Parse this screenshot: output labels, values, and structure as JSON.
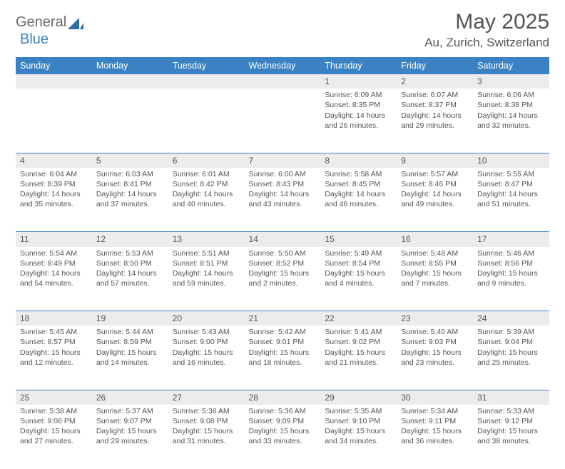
{
  "brand": {
    "part1": "General",
    "part2": "Blue"
  },
  "title": "May 2025",
  "location": "Au, Zurich, Switzerland",
  "colors": {
    "header_bg": "#3b82c4",
    "header_text": "#ffffff",
    "daynum_bg": "#ececec",
    "border": "#3b82c4",
    "text": "#555555",
    "page_bg": "#ffffff"
  },
  "day_headers": [
    "Sunday",
    "Monday",
    "Tuesday",
    "Wednesday",
    "Thursday",
    "Friday",
    "Saturday"
  ],
  "weeks": [
    {
      "nums": [
        "",
        "",
        "",
        "",
        "1",
        "2",
        "3"
      ],
      "cells": [
        null,
        null,
        null,
        null,
        {
          "sunrise": "Sunrise: 6:09 AM",
          "sunset": "Sunset: 8:35 PM",
          "day1": "Daylight: 14 hours",
          "day2": "and 26 minutes."
        },
        {
          "sunrise": "Sunrise: 6:07 AM",
          "sunset": "Sunset: 8:37 PM",
          "day1": "Daylight: 14 hours",
          "day2": "and 29 minutes."
        },
        {
          "sunrise": "Sunrise: 6:06 AM",
          "sunset": "Sunset: 8:38 PM",
          "day1": "Daylight: 14 hours",
          "day2": "and 32 minutes."
        }
      ]
    },
    {
      "nums": [
        "4",
        "5",
        "6",
        "7",
        "8",
        "9",
        "10"
      ],
      "cells": [
        {
          "sunrise": "Sunrise: 6:04 AM",
          "sunset": "Sunset: 8:39 PM",
          "day1": "Daylight: 14 hours",
          "day2": "and 35 minutes."
        },
        {
          "sunrise": "Sunrise: 6:03 AM",
          "sunset": "Sunset: 8:41 PM",
          "day1": "Daylight: 14 hours",
          "day2": "and 37 minutes."
        },
        {
          "sunrise": "Sunrise: 6:01 AM",
          "sunset": "Sunset: 8:42 PM",
          "day1": "Daylight: 14 hours",
          "day2": "and 40 minutes."
        },
        {
          "sunrise": "Sunrise: 6:00 AM",
          "sunset": "Sunset: 8:43 PM",
          "day1": "Daylight: 14 hours",
          "day2": "and 43 minutes."
        },
        {
          "sunrise": "Sunrise: 5:58 AM",
          "sunset": "Sunset: 8:45 PM",
          "day1": "Daylight: 14 hours",
          "day2": "and 46 minutes."
        },
        {
          "sunrise": "Sunrise: 5:57 AM",
          "sunset": "Sunset: 8:46 PM",
          "day1": "Daylight: 14 hours",
          "day2": "and 49 minutes."
        },
        {
          "sunrise": "Sunrise: 5:55 AM",
          "sunset": "Sunset: 8:47 PM",
          "day1": "Daylight: 14 hours",
          "day2": "and 51 minutes."
        }
      ]
    },
    {
      "nums": [
        "11",
        "12",
        "13",
        "14",
        "15",
        "16",
        "17"
      ],
      "cells": [
        {
          "sunrise": "Sunrise: 5:54 AM",
          "sunset": "Sunset: 8:49 PM",
          "day1": "Daylight: 14 hours",
          "day2": "and 54 minutes."
        },
        {
          "sunrise": "Sunrise: 5:53 AM",
          "sunset": "Sunset: 8:50 PM",
          "day1": "Daylight: 14 hours",
          "day2": "and 57 minutes."
        },
        {
          "sunrise": "Sunrise: 5:51 AM",
          "sunset": "Sunset: 8:51 PM",
          "day1": "Daylight: 14 hours",
          "day2": "and 59 minutes."
        },
        {
          "sunrise": "Sunrise: 5:50 AM",
          "sunset": "Sunset: 8:52 PM",
          "day1": "Daylight: 15 hours",
          "day2": "and 2 minutes."
        },
        {
          "sunrise": "Sunrise: 5:49 AM",
          "sunset": "Sunset: 8:54 PM",
          "day1": "Daylight: 15 hours",
          "day2": "and 4 minutes."
        },
        {
          "sunrise": "Sunrise: 5:48 AM",
          "sunset": "Sunset: 8:55 PM",
          "day1": "Daylight: 15 hours",
          "day2": "and 7 minutes."
        },
        {
          "sunrise": "Sunrise: 5:46 AM",
          "sunset": "Sunset: 8:56 PM",
          "day1": "Daylight: 15 hours",
          "day2": "and 9 minutes."
        }
      ]
    },
    {
      "nums": [
        "18",
        "19",
        "20",
        "21",
        "22",
        "23",
        "24"
      ],
      "cells": [
        {
          "sunrise": "Sunrise: 5:45 AM",
          "sunset": "Sunset: 8:57 PM",
          "day1": "Daylight: 15 hours",
          "day2": "and 12 minutes."
        },
        {
          "sunrise": "Sunrise: 5:44 AM",
          "sunset": "Sunset: 8:59 PM",
          "day1": "Daylight: 15 hours",
          "day2": "and 14 minutes."
        },
        {
          "sunrise": "Sunrise: 5:43 AM",
          "sunset": "Sunset: 9:00 PM",
          "day1": "Daylight: 15 hours",
          "day2": "and 16 minutes."
        },
        {
          "sunrise": "Sunrise: 5:42 AM",
          "sunset": "Sunset: 9:01 PM",
          "day1": "Daylight: 15 hours",
          "day2": "and 18 minutes."
        },
        {
          "sunrise": "Sunrise: 5:41 AM",
          "sunset": "Sunset: 9:02 PM",
          "day1": "Daylight: 15 hours",
          "day2": "and 21 minutes."
        },
        {
          "sunrise": "Sunrise: 5:40 AM",
          "sunset": "Sunset: 9:03 PM",
          "day1": "Daylight: 15 hours",
          "day2": "and 23 minutes."
        },
        {
          "sunrise": "Sunrise: 5:39 AM",
          "sunset": "Sunset: 9:04 PM",
          "day1": "Daylight: 15 hours",
          "day2": "and 25 minutes."
        }
      ]
    },
    {
      "nums": [
        "25",
        "26",
        "27",
        "28",
        "29",
        "30",
        "31"
      ],
      "cells": [
        {
          "sunrise": "Sunrise: 5:38 AM",
          "sunset": "Sunset: 9:06 PM",
          "day1": "Daylight: 15 hours",
          "day2": "and 27 minutes."
        },
        {
          "sunrise": "Sunrise: 5:37 AM",
          "sunset": "Sunset: 9:07 PM",
          "day1": "Daylight: 15 hours",
          "day2": "and 29 minutes."
        },
        {
          "sunrise": "Sunrise: 5:36 AM",
          "sunset": "Sunset: 9:08 PM",
          "day1": "Daylight: 15 hours",
          "day2": "and 31 minutes."
        },
        {
          "sunrise": "Sunrise: 5:36 AM",
          "sunset": "Sunset: 9:09 PM",
          "day1": "Daylight: 15 hours",
          "day2": "and 33 minutes."
        },
        {
          "sunrise": "Sunrise: 5:35 AM",
          "sunset": "Sunset: 9:10 PM",
          "day1": "Daylight: 15 hours",
          "day2": "and 34 minutes."
        },
        {
          "sunrise": "Sunrise: 5:34 AM",
          "sunset": "Sunset: 9:11 PM",
          "day1": "Daylight: 15 hours",
          "day2": "and 36 minutes."
        },
        {
          "sunrise": "Sunrise: 5:33 AM",
          "sunset": "Sunset: 9:12 PM",
          "day1": "Daylight: 15 hours",
          "day2": "and 38 minutes."
        }
      ]
    }
  ]
}
